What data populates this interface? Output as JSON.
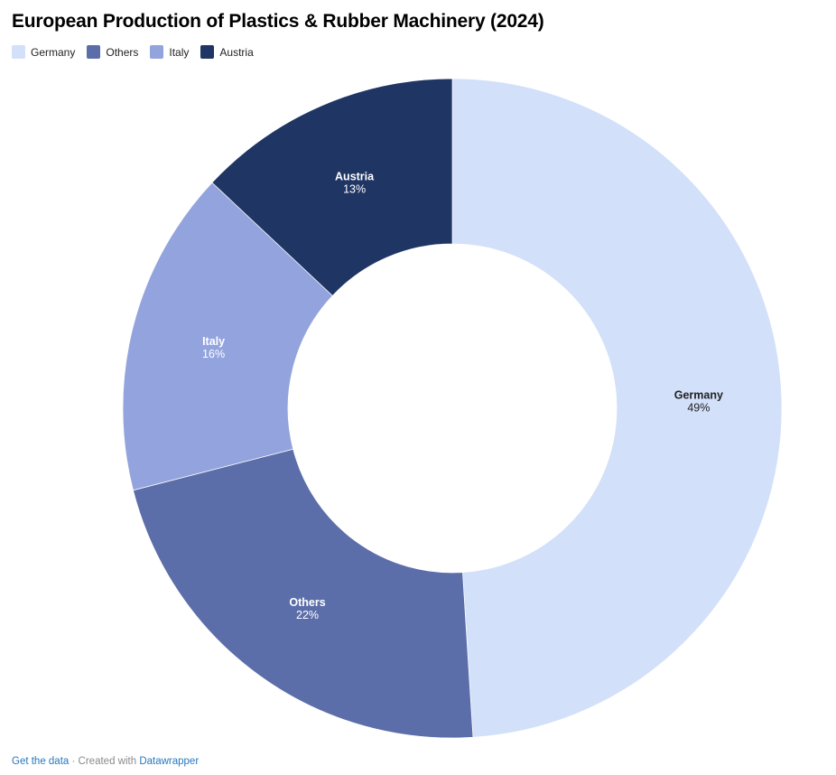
{
  "header": {
    "title": "European Production of Plastics & Rubber Machinery (2024)"
  },
  "chart_data": {
    "type": "pie",
    "subtype": "donut",
    "title": "European Production of Plastics & Rubber Machinery (2024)",
    "categories": [
      "Germany",
      "Others",
      "Italy",
      "Austria"
    ],
    "values": [
      49,
      22,
      16,
      13
    ],
    "unit": "%",
    "colors": [
      "#d2e0fa",
      "#5c6ea9",
      "#93a3dd",
      "#1f3563"
    ],
    "label_text_colors": [
      "#222222",
      "#ffffff",
      "#ffffff",
      "#ffffff"
    ],
    "start_angle_deg": 0,
    "direction": "clockwise",
    "labels_inside": true,
    "legend_position": "top-left"
  },
  "footer": {
    "get_data_label": "Get the data",
    "separator": "·",
    "created_with": "Created with",
    "brand": "Datawrapper",
    "link_color": "#2779bd",
    "muted_color": "#8a8a8a"
  }
}
